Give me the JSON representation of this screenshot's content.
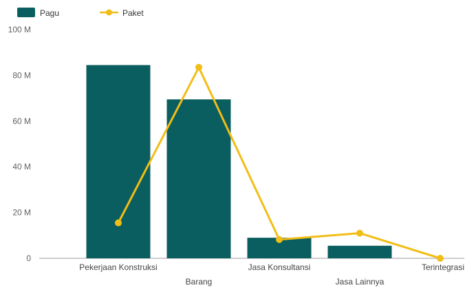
{
  "chart_data": {
    "type": "bar",
    "categories": [
      "Pekerjaan Konstruksi",
      "Barang",
      "Jasa Konsultansi",
      "Jasa Lainnya",
      "Terintegrasi"
    ],
    "series": [
      {
        "name": "Pagu",
        "kind": "bar",
        "color": "#0b5e5f",
        "values": [
          84.5,
          69.5,
          9,
          5.5,
          0
        ]
      },
      {
        "name": "Paket",
        "kind": "line",
        "color": "#f2bd16",
        "values": [
          15.5,
          83.5,
          8.2,
          11,
          0
        ]
      }
    ],
    "y_ticks": [
      "0",
      "20 M",
      "40 M",
      "60 M",
      "80 M",
      "100 M"
    ],
    "ylim": [
      0,
      100
    ],
    "grid": false,
    "legend": "top-left",
    "title": "",
    "xlabel": "",
    "ylabel": ""
  }
}
